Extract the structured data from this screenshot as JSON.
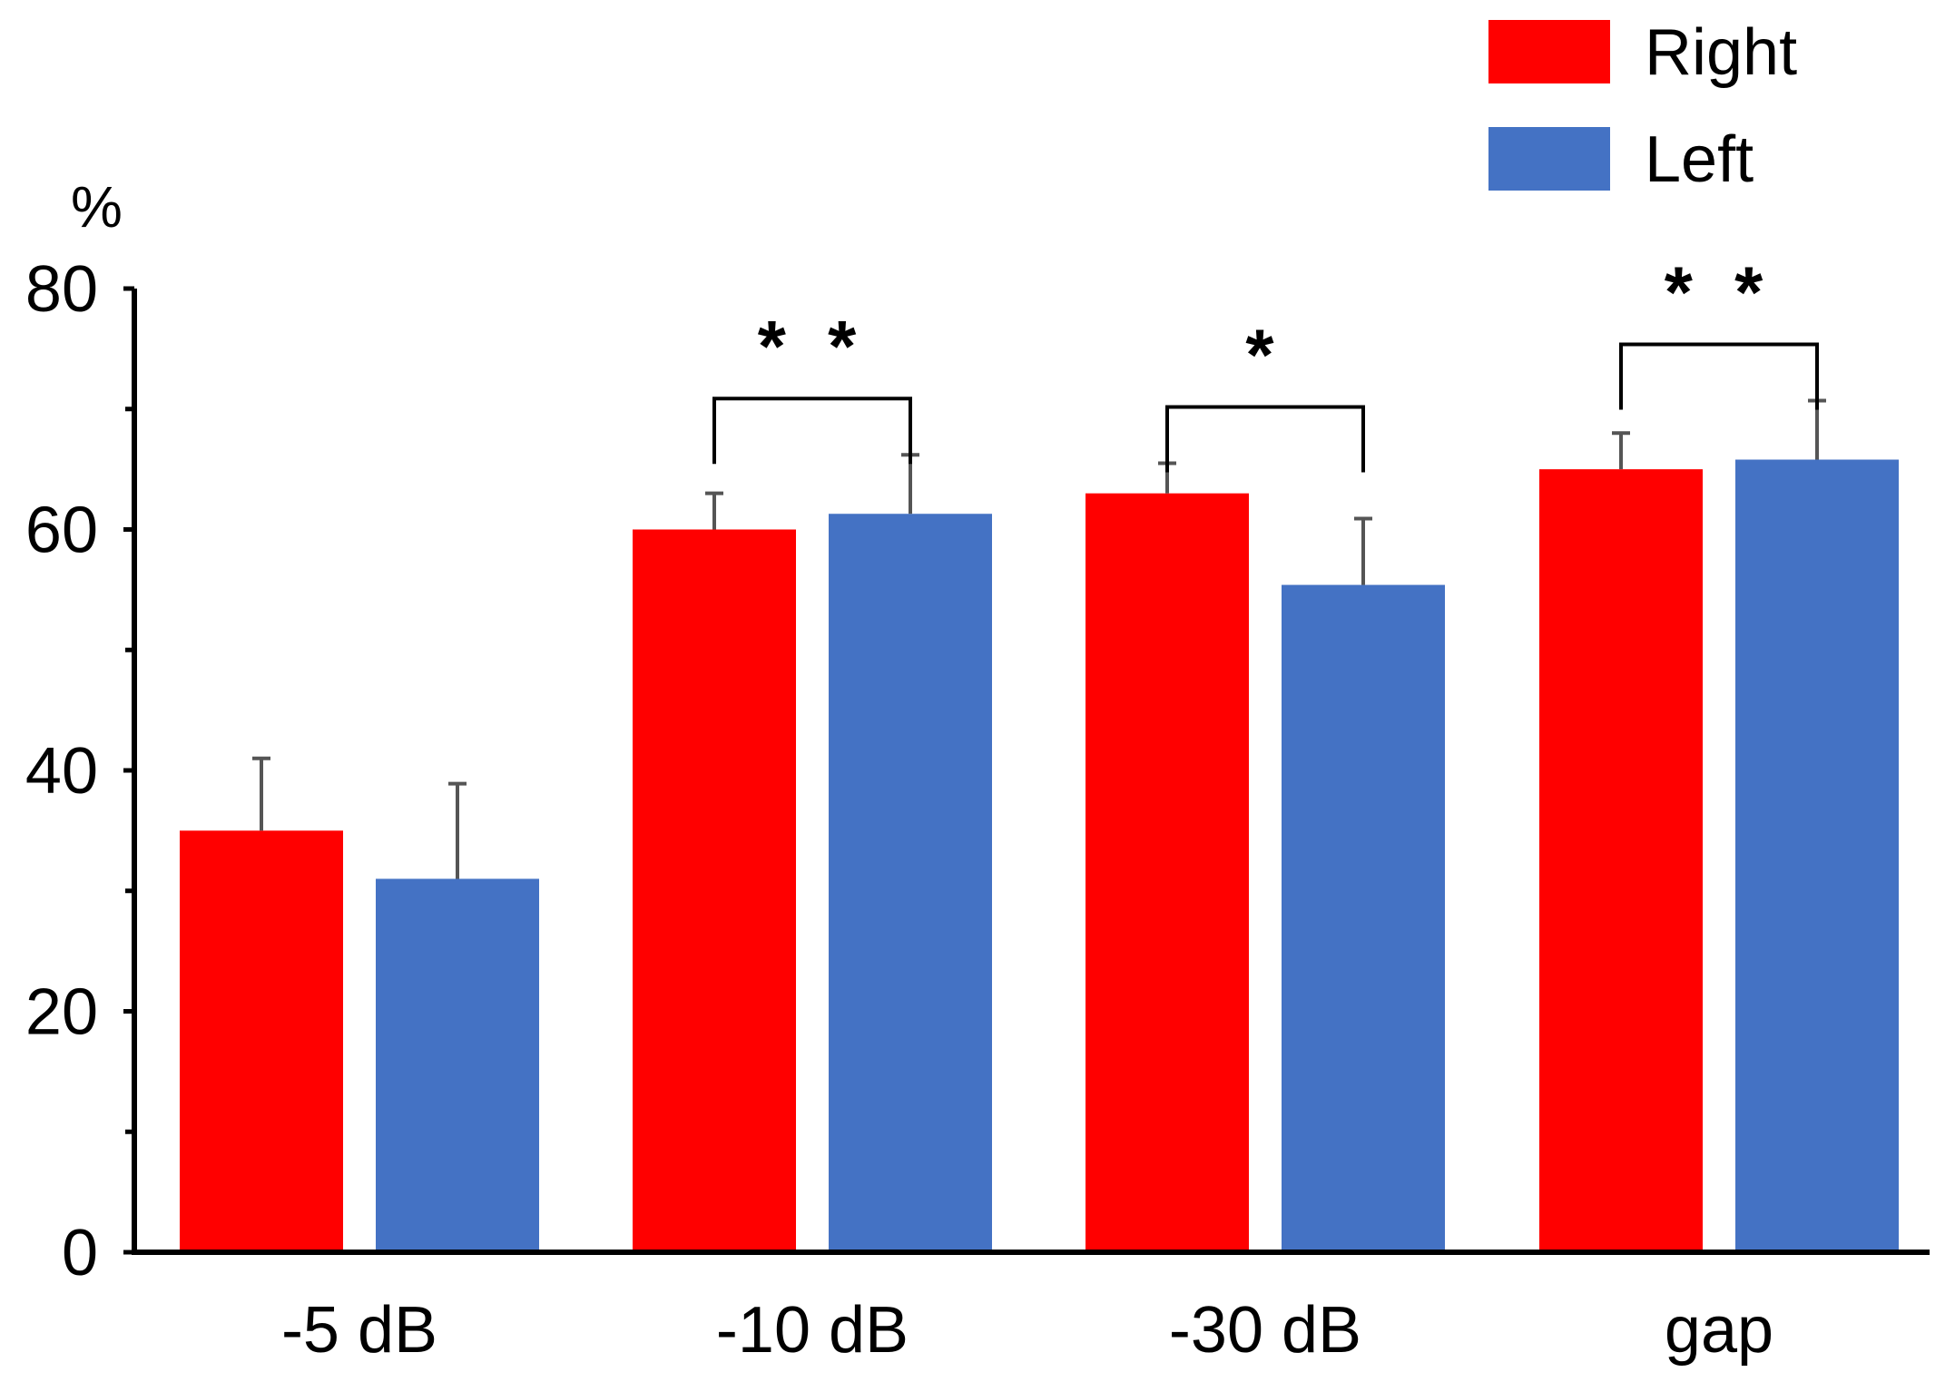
{
  "chart_data": {
    "type": "bar",
    "title": "",
    "xlabel": "",
    "ylabel": "%",
    "ylim": [
      0,
      80
    ],
    "yticks": [
      0,
      20,
      40,
      60,
      80
    ],
    "categories": [
      "-5 dB",
      "-10 dB",
      "-30 dB",
      "gap"
    ],
    "series": [
      {
        "name": "Right",
        "color": "#ff0000",
        "values": [
          35,
          60,
          63,
          65
        ],
        "errors": [
          6,
          3,
          2.5,
          3
        ]
      },
      {
        "name": "Left",
        "color": "#4472c4",
        "values": [
          31,
          61.3,
          55.4,
          65.8
        ],
        "errors": [
          7.9,
          4.9,
          5.5,
          4.9
        ]
      }
    ],
    "significance": [
      {
        "category": "-10 dB",
        "label": "* *"
      },
      {
        "category": "-30 dB",
        "label": "*"
      },
      {
        "category": "gap",
        "label": "* *"
      }
    ],
    "legend": [
      "Right",
      "Left"
    ],
    "legend_position": "top-right",
    "grid": false
  }
}
